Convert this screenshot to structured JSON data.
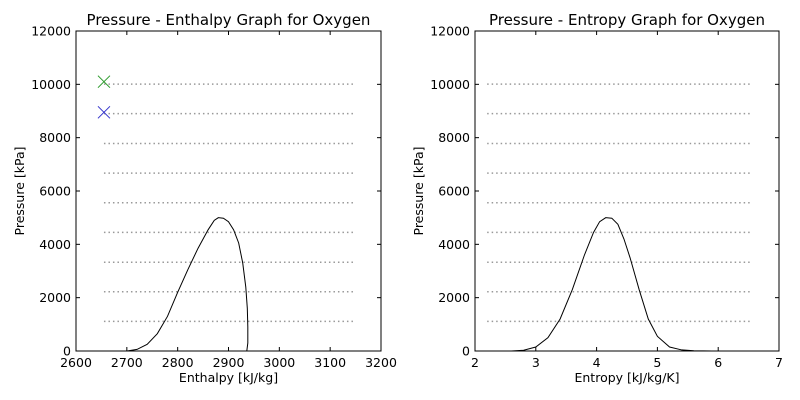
{
  "chart_data": [
    {
      "type": "line",
      "title": "Pressure - Enthalpy Graph for Oxygen",
      "xlabel": "Enthalpy [kJ/kg]",
      "ylabel": "Pressure [kPa]",
      "xlim": [
        2600,
        3200
      ],
      "ylim": [
        0,
        12000
      ],
      "xticks": [
        2600,
        2700,
        2800,
        2900,
        3000,
        3100,
        3200
      ],
      "yticks": [
        0,
        2000,
        4000,
        6000,
        8000,
        10000,
        12000
      ],
      "grid": false,
      "isobars": {
        "style": "dotted",
        "color": "#999999",
        "x_range": [
          2655,
          3150
        ],
        "pressures": [
          1110,
          2220,
          3330,
          4450,
          5560,
          6670,
          7780,
          8900,
          10010
        ]
      },
      "series": [
        {
          "style": "solid",
          "color": "#000000",
          "x": [
            2700,
            2720,
            2740,
            2760,
            2780,
            2800,
            2820,
            2840,
            2860,
            2872,
            2880,
            2890,
            2900,
            2910,
            2920,
            2928,
            2934,
            2937,
            2938,
            2938,
            2936
          ],
          "y": [
            0,
            60,
            250,
            650,
            1300,
            2200,
            3050,
            3850,
            4550,
            4900,
            5000,
            4980,
            4850,
            4550,
            4050,
            3300,
            2400,
            1600,
            900,
            300,
            0
          ]
        }
      ],
      "markers": [
        {
          "symbol": "x",
          "color": "#3333cc",
          "x": 2655,
          "y": 8950
        },
        {
          "symbol": "x",
          "color": "#2a9a2a",
          "x": 2655,
          "y": 10100
        }
      ]
    },
    {
      "type": "line",
      "title": "Pressure - Entropy Graph for Oxygen",
      "xlabel": "Entropy [kJ/kg/K]",
      "ylabel": "Pressure [kPa]",
      "xlim": [
        2,
        7
      ],
      "ylim": [
        0,
        12000
      ],
      "xticks": [
        2,
        3,
        4,
        5,
        6,
        7
      ],
      "yticks": [
        0,
        2000,
        4000,
        6000,
        8000,
        10000,
        12000
      ],
      "grid": false,
      "isobars": {
        "style": "dotted",
        "color": "#999999",
        "x_range": [
          2.2,
          6.55
        ],
        "pressures": [
          1110,
          2220,
          3330,
          4450,
          5560,
          6670,
          7780,
          8900,
          10010
        ]
      },
      "series": [
        {
          "style": "solid",
          "color": "#000000",
          "x": [
            2.6,
            2.8,
            3.0,
            3.2,
            3.4,
            3.6,
            3.8,
            3.95,
            4.05,
            4.15,
            4.25,
            4.35,
            4.45,
            4.55,
            4.7,
            4.85,
            5.0,
            5.2,
            5.4,
            5.6,
            5.9
          ],
          "y": [
            0,
            30,
            150,
            500,
            1200,
            2300,
            3600,
            4450,
            4850,
            5000,
            4980,
            4750,
            4200,
            3500,
            2300,
            1200,
            550,
            150,
            40,
            10,
            0
          ]
        }
      ],
      "markers": []
    }
  ]
}
